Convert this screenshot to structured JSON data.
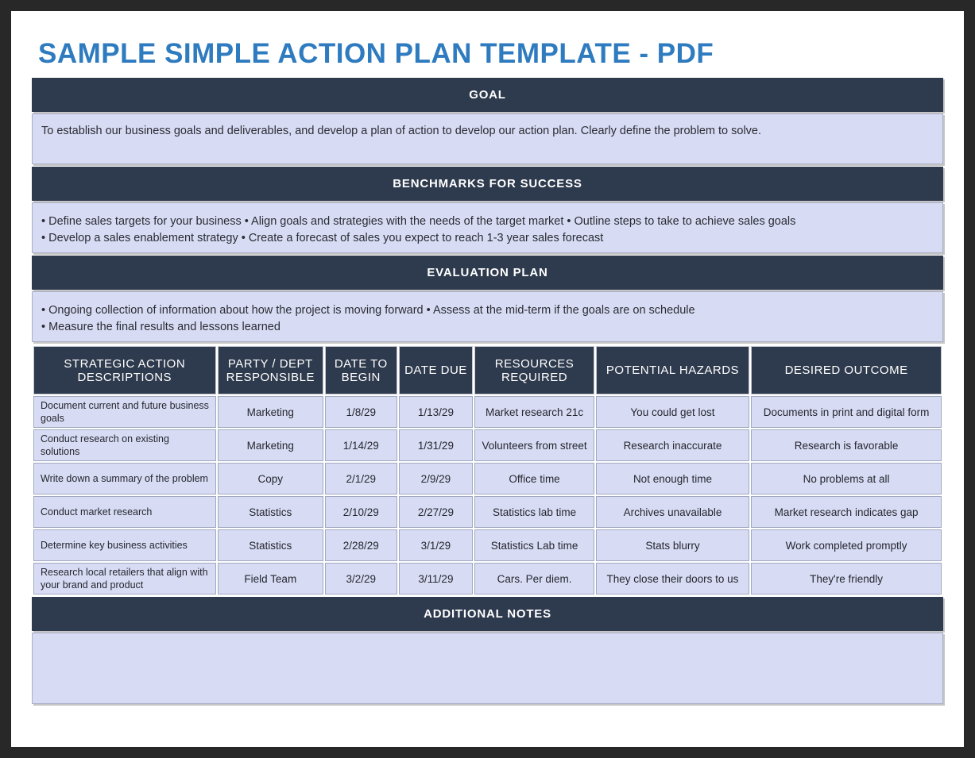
{
  "page_title": "SAMPLE SIMPLE ACTION PLAN TEMPLATE - PDF",
  "colors": {
    "frame": "#282828",
    "header_bar_bg": "#2E3A4D",
    "content_bg": "#D7DCF4",
    "title_blue": "#2E7BBF"
  },
  "sections": {
    "goal": {
      "header": "GOAL",
      "text": "To establish our business goals and deliverables, and develop a plan of action to develop our action plan. Clearly define the problem to solve."
    },
    "benchmarks": {
      "header": "BENCHMARKS FOR SUCCESS",
      "lines": [
        "• Define sales targets for your business • Align goals and strategies with the needs of the target market • Outline steps to take to achieve sales goals",
        "• Develop a sales enablement strategy • Create a forecast of sales you expect to reach 1-3 year sales forecast"
      ]
    },
    "evaluation": {
      "header": "EVALUATION PLAN",
      "lines": [
        "• Ongoing collection of information about how the project is moving forward • Assess at the mid-term if the goals are on schedule",
        "• Measure the final results and lessons learned"
      ]
    },
    "notes": {
      "header": "ADDITIONAL NOTES",
      "text": ""
    }
  },
  "table": {
    "columns": [
      "STRATEGIC ACTION DESCRIPTIONS",
      "PARTY / DEPT RESPONSIBLE",
      "DATE TO BEGIN",
      "DATE DUE",
      "RESOURCES REQUIRED",
      "POTENTIAL HAZARDS",
      "DESIRED OUTCOME"
    ],
    "rows": [
      [
        "Document current and future business goals",
        "Marketing",
        "1/8/29",
        "1/13/29",
        "Market research 21c",
        "You could get lost",
        "Documents in print and digital form"
      ],
      [
        "Conduct research on existing solutions",
        "Marketing",
        "1/14/29",
        "1/31/29",
        "Volunteers from street",
        "Research inaccurate",
        "Research is favorable"
      ],
      [
        "Write down a summary of the problem",
        "Copy",
        "2/1/29",
        "2/9/29",
        "Office time",
        "Not enough time",
        "No problems at all"
      ],
      [
        "Conduct market research",
        "Statistics",
        "2/10/29",
        "2/27/29",
        "Statistics lab time",
        "Archives unavailable",
        "Market research indicates gap"
      ],
      [
        "Determine key business activities",
        "Statistics",
        "2/28/29",
        "3/1/29",
        "Statistics Lab time",
        "Stats blurry",
        "Work completed promptly"
      ],
      [
        "Research local retailers that align with your brand and product",
        "Field Team",
        "3/2/29",
        "3/11/29",
        "Cars. Per diem.",
        "They close their doors to us",
        "They're friendly"
      ]
    ]
  }
}
